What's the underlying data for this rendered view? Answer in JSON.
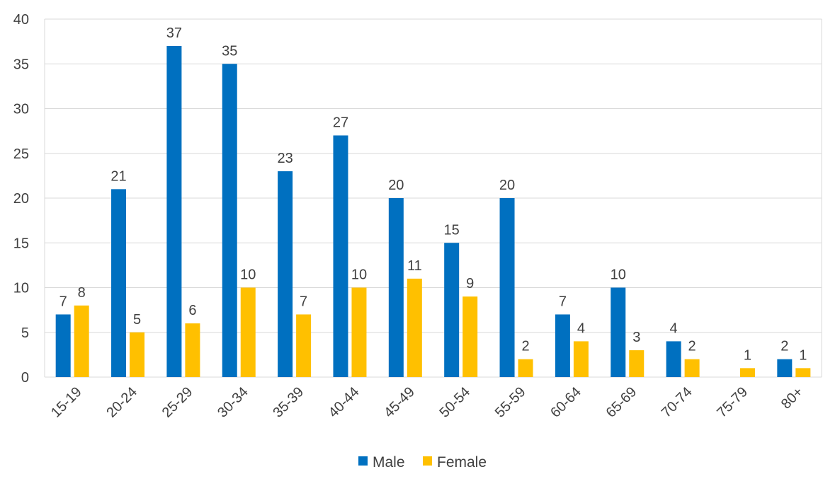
{
  "chart_data": {
    "type": "bar",
    "categories": [
      "15-19",
      "20-24",
      "25-29",
      "30-34",
      "35-39",
      "40-44",
      "45-49",
      "50-54",
      "55-59",
      "60-64",
      "65-69",
      "70-74",
      "75-79",
      "80+"
    ],
    "series": [
      {
        "name": "Male",
        "color": "#0070C0",
        "values": [
          7,
          21,
          37,
          35,
          23,
          27,
          20,
          15,
          20,
          7,
          10,
          4,
          null,
          2
        ]
      },
      {
        "name": "Female",
        "color": "#FFC000",
        "values": [
          8,
          5,
          6,
          10,
          7,
          10,
          11,
          9,
          2,
          4,
          3,
          2,
          1,
          1
        ]
      }
    ],
    "y_ticks": [
      0,
      5,
      10,
      15,
      20,
      25,
      30,
      35,
      40
    ],
    "ylim": [
      0,
      40
    ],
    "grid": true,
    "legend_position": "bottom",
    "data_labels": true
  }
}
